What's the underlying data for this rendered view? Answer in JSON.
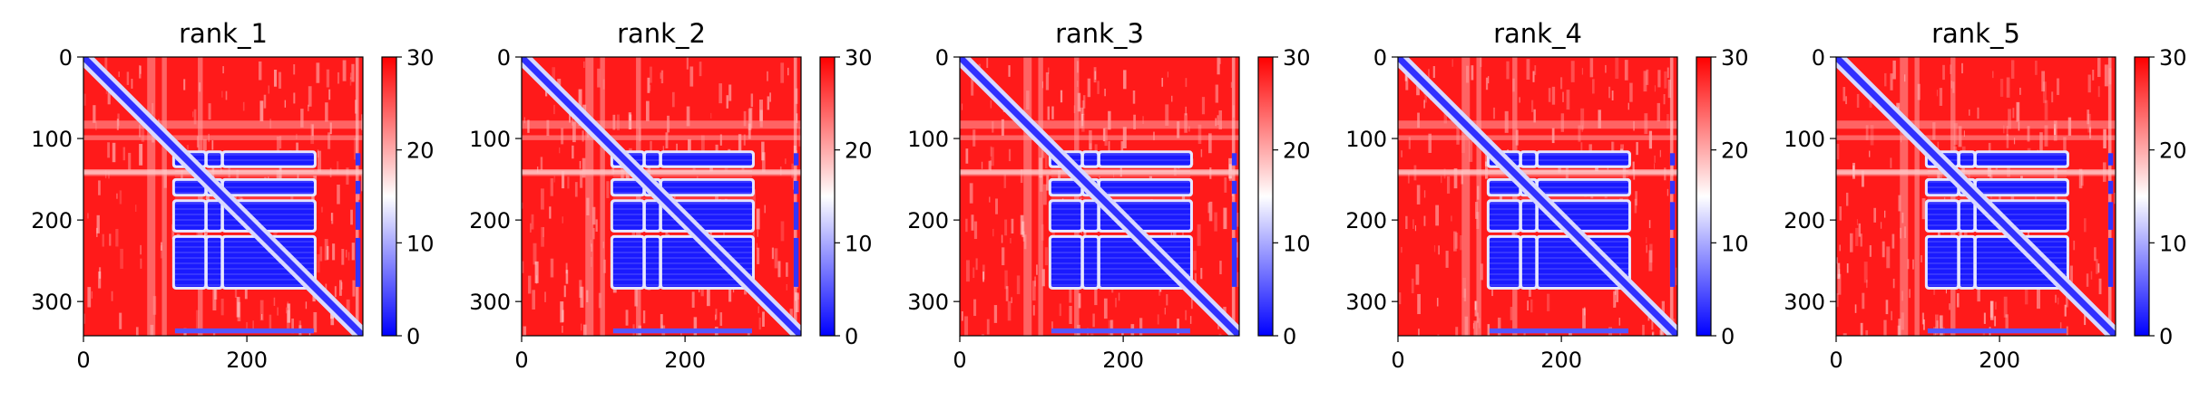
{
  "chart_data": [
    {
      "type": "heatmap",
      "title": "rank_1",
      "x_ticks": [
        "0",
        "200"
      ],
      "y_ticks": [
        "0",
        "100",
        "200",
        "300"
      ],
      "xlim": [
        0,
        342
      ],
      "ylim": [
        342,
        0
      ],
      "colorbar": {
        "ticks": [
          "0",
          "10",
          "20",
          "30"
        ],
        "range": [
          0,
          30
        ],
        "colormap": "bwr"
      },
      "colors": {
        "low": "#0000ff",
        "mid": "#ffffff",
        "high": "#ff0000"
      }
    },
    {
      "type": "heatmap",
      "title": "rank_2",
      "x_ticks": [
        "0",
        "200"
      ],
      "y_ticks": [
        "0",
        "100",
        "200",
        "300"
      ],
      "xlim": [
        0,
        342
      ],
      "ylim": [
        342,
        0
      ],
      "colorbar": {
        "ticks": [
          "0",
          "10",
          "20",
          "30"
        ],
        "range": [
          0,
          30
        ],
        "colormap": "bwr"
      },
      "colors": {
        "low": "#0000ff",
        "mid": "#ffffff",
        "high": "#ff0000"
      }
    },
    {
      "type": "heatmap",
      "title": "rank_3",
      "x_ticks": [
        "0",
        "200"
      ],
      "y_ticks": [
        "0",
        "100",
        "200",
        "300"
      ],
      "xlim": [
        0,
        342
      ],
      "ylim": [
        342,
        0
      ],
      "colorbar": {
        "ticks": [
          "0",
          "10",
          "20",
          "30"
        ],
        "range": [
          0,
          30
        ],
        "colormap": "bwr"
      },
      "colors": {
        "low": "#0000ff",
        "mid": "#ffffff",
        "high": "#ff0000"
      }
    },
    {
      "type": "heatmap",
      "title": "rank_4",
      "x_ticks": [
        "0",
        "200"
      ],
      "y_ticks": [
        "0",
        "100",
        "200",
        "300"
      ],
      "xlim": [
        0,
        342
      ],
      "ylim": [
        342,
        0
      ],
      "colorbar": {
        "ticks": [
          "0",
          "10",
          "20",
          "30"
        ],
        "range": [
          0,
          30
        ],
        "colormap": "bwr"
      },
      "colors": {
        "low": "#0000ff",
        "mid": "#ffffff",
        "high": "#ff0000"
      }
    },
    {
      "type": "heatmap",
      "title": "rank_5",
      "x_ticks": [
        "0",
        "200"
      ],
      "y_ticks": [
        "0",
        "100",
        "200",
        "300"
      ],
      "xlim": [
        0,
        342
      ],
      "ylim": [
        342,
        0
      ],
      "colorbar": {
        "ticks": [
          "0",
          "10",
          "20",
          "30"
        ],
        "range": [
          0,
          30
        ],
        "colormap": "bwr"
      },
      "colors": {
        "low": "#0000ff",
        "mid": "#ffffff",
        "high": "#ff0000"
      }
    }
  ]
}
